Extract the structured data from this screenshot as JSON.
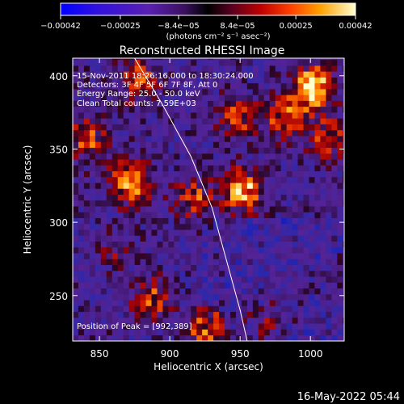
{
  "chart_data": {
    "type": "heatmap",
    "title": "Reconstructed RHESSI Image",
    "xlabel": "Heliocentric X (arcsec)",
    "ylabel": "Heliocentric Y (arcsec)",
    "xlim": [
      831,
      1024
    ],
    "ylim": [
      219,
      412
    ],
    "x_ticks": [
      850,
      900,
      950,
      1000
    ],
    "y_ticks": [
      250,
      300,
      350,
      400
    ],
    "colorbar": {
      "label": "(photons cm⁻² s⁻¹ asec⁻²)",
      "range": [
        -0.00042,
        0.00042
      ],
      "tick_labels": [
        "−0.00042",
        "−0.00025",
        "−8.4e−05",
        "8.4e−05",
        "0.00025",
        "0.00042"
      ],
      "tick_values": [
        -0.00042,
        -0.00025,
        -8.4e-05,
        8.4e-05,
        0.00025,
        0.00042
      ]
    },
    "annotations": [
      "15-Nov-2011 18:26:16.000 to 18:30:24.000",
      "Detectors: 3F 4F 5F 6F 7F 8F, Att 0",
      "Energy Range: 25.0 - 50.0 keV",
      "Clean    Total counts: 7.59E+03"
    ],
    "peak_label": "Position of Peak = [992,389]",
    "peak_position": [
      992,
      389
    ],
    "limb_curve": [
      [
        875,
        412
      ],
      [
        895,
        380
      ],
      [
        915,
        345
      ],
      [
        930,
        310
      ],
      [
        940,
        275
      ],
      [
        950,
        240
      ],
      [
        955,
        219
      ]
    ],
    "hotspots": [
      {
        "x": 1000,
        "y": 390,
        "v": 1.0
      },
      {
        "x": 980,
        "y": 370,
        "v": 0.6
      },
      {
        "x": 1010,
        "y": 355,
        "v": 0.55
      },
      {
        "x": 945,
        "y": 370,
        "v": 0.55
      },
      {
        "x": 915,
        "y": 315,
        "v": 0.55
      },
      {
        "x": 875,
        "y": 395,
        "v": 0.6
      },
      {
        "x": 950,
        "y": 320,
        "v": 0.8
      },
      {
        "x": 925,
        "y": 225,
        "v": 0.7
      },
      {
        "x": 870,
        "y": 325,
        "v": 0.75
      },
      {
        "x": 885,
        "y": 245,
        "v": 0.55
      },
      {
        "x": 840,
        "y": 355,
        "v": 0.55
      },
      {
        "x": 965,
        "y": 230,
        "v": 0.4
      },
      {
        "x": 1015,
        "y": 255,
        "v": 0.2
      },
      {
        "x": 860,
        "y": 280,
        "v": 0.25
      }
    ]
  },
  "footer": {
    "timestamp": "16-May-2022 05:44"
  }
}
